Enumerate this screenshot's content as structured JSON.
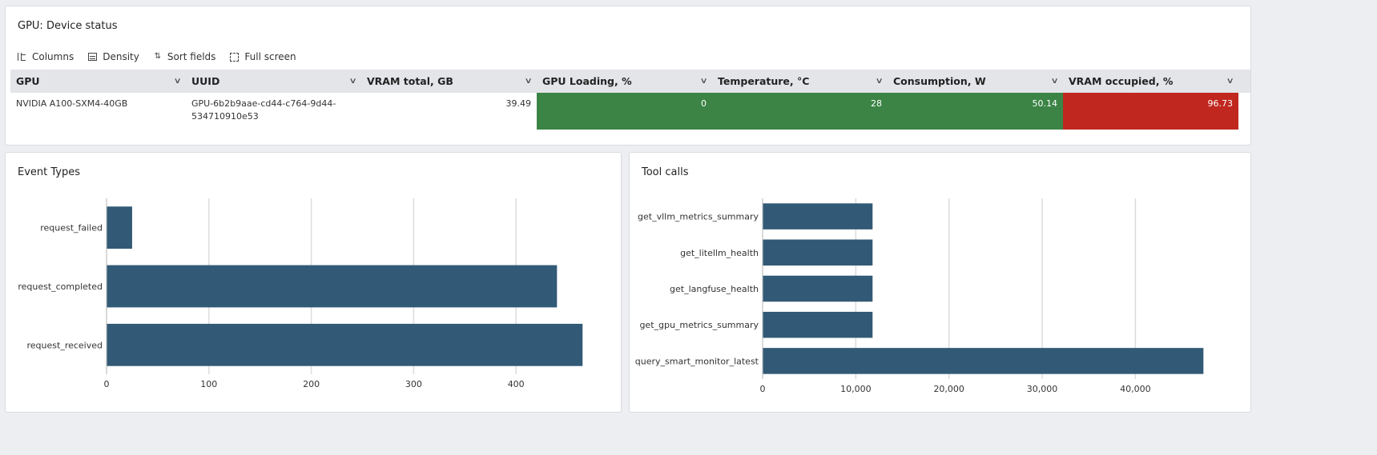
{
  "device_panel": {
    "title": "GPU: Device status",
    "toolbar": {
      "columns": "Columns",
      "density": "Density",
      "sort_fields": "Sort fields",
      "full_screen": "Full screen"
    },
    "headers": [
      "GPU",
      "UUID",
      "VRAM total, GB",
      "GPU Loading, %",
      "Temperature, °C",
      "Consumption, W",
      "VRAM occupied, %"
    ],
    "row": {
      "gpu": "NVIDIA A100-SXM4-40GB",
      "uuid_line1": "GPU-6b2b9aae-cd44-c764-9d44-",
      "uuid_line2": "534710910e53",
      "vram_total": "39.49",
      "gpu_loading": "0",
      "temperature": "28",
      "consumption": "50.14",
      "vram_occupied": "96.73"
    },
    "colors": {
      "ok": "#3b8445",
      "critical": "#c0271f"
    }
  },
  "event_panel": {
    "title": "Event Types"
  },
  "tool_panel": {
    "title": "Tool calls"
  },
  "chart_data": [
    {
      "type": "bar",
      "orientation": "horizontal",
      "title": "Event Types",
      "categories": [
        "request_failed",
        "request_completed",
        "request_received"
      ],
      "values": [
        25,
        440,
        465
      ],
      "xlim": [
        0,
        500
      ],
      "xticks": [
        "0",
        "100",
        "200",
        "300",
        "400"
      ],
      "xtick_values": [
        0,
        100,
        200,
        300,
        400
      ],
      "grid": true,
      "color": "#325a76"
    },
    {
      "type": "bar",
      "orientation": "horizontal",
      "title": "Tool calls",
      "categories": [
        "get_vllm_metrics_summary",
        "get_litellm_health",
        "get_langfuse_health",
        "get_gpu_metrics_summary",
        "query_smart_monitor_latest"
      ],
      "values": [
        11800,
        11800,
        11800,
        11800,
        47300
      ],
      "xlim": [
        0,
        52000
      ],
      "xticks": [
        "0",
        "10,000",
        "20,000",
        "30,000",
        "40,000"
      ],
      "xtick_values": [
        0,
        10000,
        20000,
        30000,
        40000
      ],
      "grid": true,
      "color": "#325a76"
    }
  ]
}
